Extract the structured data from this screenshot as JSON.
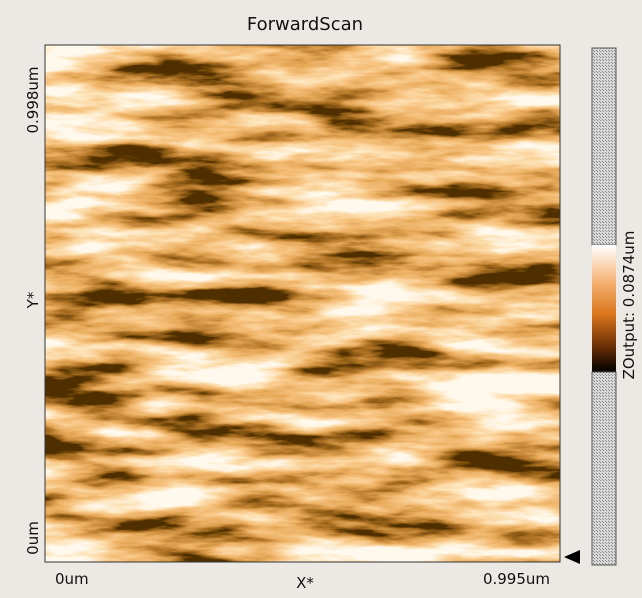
{
  "window": {
    "title": "ForwardScan",
    "y_axis": {
      "top": "0.998um",
      "label": "Y*",
      "bottom": "0um"
    },
    "x_axis": {
      "left": "0um",
      "label": "X*",
      "right": "0.995um"
    },
    "colorbar": {
      "label": "ZOutput: 0.0874um"
    }
  }
}
